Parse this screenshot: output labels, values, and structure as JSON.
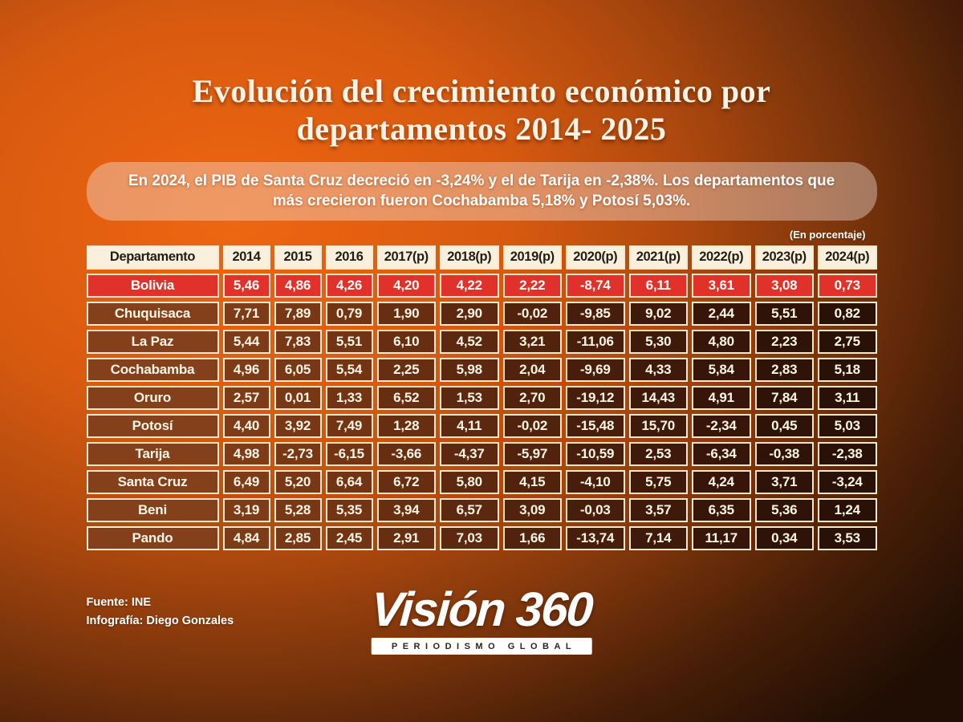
{
  "title": "Evolución del crecimiento económico por departamentos 2014- 2025",
  "subtitle": "En 2024, el PIB de Santa Cruz decreció en -3,24% y el de Tarija en -2,38%. Los departamentos que más crecieron fueron Cochabamba 5,18% y Potosí 5,03%.",
  "unit_note": "(En porcentaje)",
  "chart_data": {
    "type": "table",
    "title": "Evolución del crecimiento económico por departamentos 2014- 2025",
    "unit": "porcentaje",
    "columns": [
      "Departamento",
      "2014",
      "2015",
      "2016",
      "2017(p)",
      "2018(p)",
      "2019(p)",
      "2020(p)",
      "2021(p)",
      "2022(p)",
      "2023(p)",
      "2024(p)"
    ],
    "highlight_row": "Bolivia",
    "decimal_separator": ",",
    "series": [
      {
        "name": "Bolivia",
        "values": [
          5.46,
          4.86,
          4.26,
          4.2,
          4.22,
          2.22,
          -8.74,
          6.11,
          3.61,
          3.08,
          0.73
        ]
      },
      {
        "name": "Chuquisaca",
        "values": [
          7.71,
          7.89,
          0.79,
          1.9,
          2.9,
          -0.02,
          -9.85,
          9.02,
          2.44,
          5.51,
          0.82
        ]
      },
      {
        "name": "La Paz",
        "values": [
          5.44,
          7.83,
          5.51,
          6.1,
          4.52,
          3.21,
          -11.06,
          5.3,
          4.8,
          2.23,
          2.75
        ]
      },
      {
        "name": "Cochabamba",
        "values": [
          4.96,
          6.05,
          5.54,
          2.25,
          5.98,
          2.04,
          -9.69,
          4.33,
          5.84,
          2.83,
          5.18
        ]
      },
      {
        "name": "Oruro",
        "values": [
          2.57,
          0.01,
          1.33,
          6.52,
          1.53,
          2.7,
          -19.12,
          14.43,
          4.91,
          7.84,
          3.11
        ]
      },
      {
        "name": "Potosí",
        "values": [
          4.4,
          3.92,
          7.49,
          1.28,
          4.11,
          -0.02,
          -15.48,
          15.7,
          -2.34,
          0.45,
          5.03
        ]
      },
      {
        "name": "Tarija",
        "values": [
          4.98,
          -2.73,
          -6.15,
          -3.66,
          -4.37,
          -5.97,
          -10.59,
          2.53,
          -6.34,
          -0.38,
          -2.38
        ]
      },
      {
        "name": "Santa Cruz",
        "values": [
          6.49,
          5.2,
          6.64,
          6.72,
          5.8,
          4.15,
          -4.1,
          5.75,
          4.24,
          3.71,
          -3.24
        ]
      },
      {
        "name": "Beni",
        "values": [
          3.19,
          5.28,
          5.35,
          3.94,
          6.57,
          3.09,
          -0.03,
          3.57,
          6.35,
          5.36,
          1.24
        ]
      },
      {
        "name": "Pando",
        "values": [
          4.84,
          2.85,
          2.45,
          2.91,
          7.03,
          1.66,
          -13.74,
          7.14,
          11.17,
          0.34,
          3.53
        ]
      }
    ]
  },
  "footer": {
    "source": "Fuente: INE",
    "credit": "Infografía: Diego Gonzales"
  },
  "logo": {
    "name": "Visión 360",
    "tagline": "PERIODISMO GLOBAL"
  },
  "colors": {
    "background_orange": "#d85a10",
    "background_dark": "#200e04",
    "highlight_red": "#e0312b",
    "header_cream": "#f8efdc",
    "cell_border": "#f6e7cb",
    "text_cream": "#fdf5e6"
  }
}
